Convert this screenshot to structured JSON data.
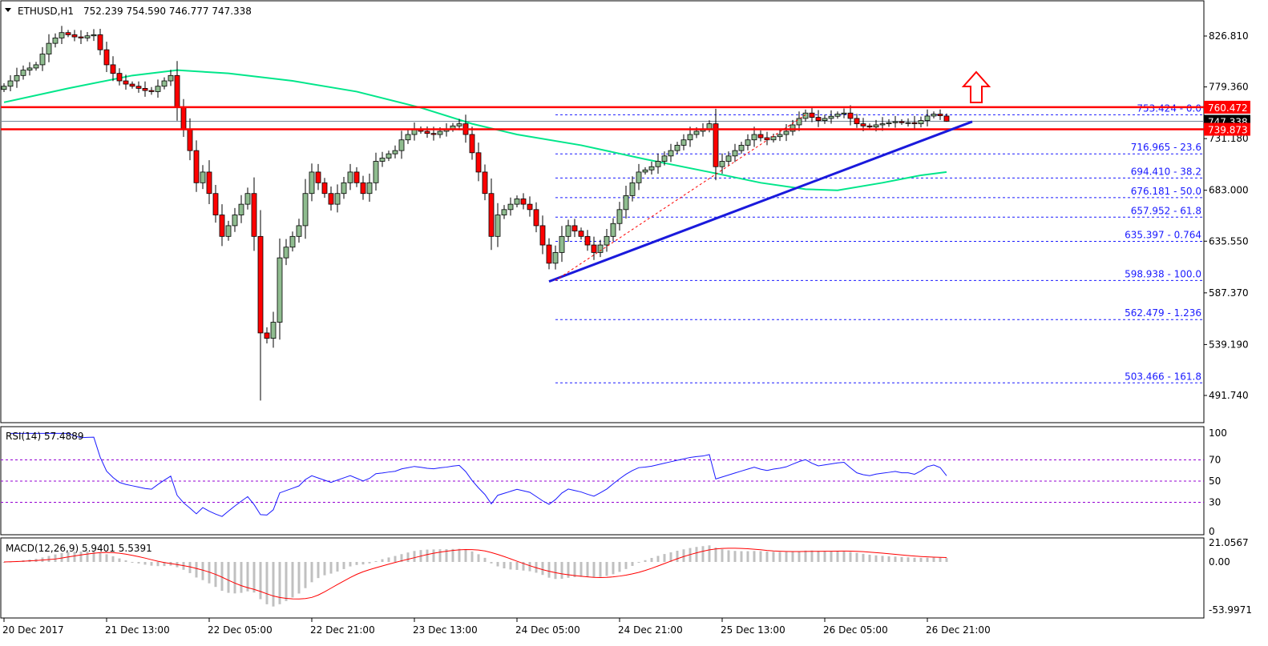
{
  "header": {
    "symbol": "ETHUSD,H1",
    "ohlc": "752.239 754.590 746.777 747.338"
  },
  "colors": {
    "bull": "#8fbc8f",
    "bear": "#ff0000",
    "ma": "#00e68a",
    "trendline": "#1a1adc",
    "resistance": "#ff0000",
    "fib": "#1a1aff",
    "rsi": "#1a1aff",
    "rsi_levels": "#9400d3",
    "macd_hist": "#c0c0c0",
    "macd_signal": "#ff0000"
  },
  "chart_data": [
    {
      "type": "candlestick",
      "title": "ETHUSD,H1",
      "timeframe": "H1",
      "start": "20 Dec 2017 21:00",
      "closes": [
        780,
        785,
        790,
        795,
        797,
        800,
        810,
        820,
        825,
        830,
        828,
        826,
        825,
        827,
        828,
        814,
        800,
        792,
        785,
        782,
        780,
        778,
        776,
        775,
        780,
        785,
        790,
        760,
        740,
        720,
        690,
        700,
        680,
        660,
        640,
        650,
        660,
        670,
        680,
        640,
        550,
        545,
        560,
        620,
        630,
        640,
        650,
        680,
        700,
        690,
        680,
        670,
        680,
        690,
        700,
        690,
        680,
        690,
        710,
        713,
        717,
        720,
        730,
        735,
        740,
        738,
        736,
        735,
        738,
        740,
        743,
        745,
        735,
        718,
        700,
        680,
        640,
        660,
        665,
        670,
        675,
        670,
        665,
        650,
        632,
        615,
        625,
        640,
        650,
        645,
        640,
        632,
        625,
        632,
        640,
        652,
        665,
        678,
        690,
        700,
        702,
        705,
        710,
        715,
        720,
        725,
        730,
        735,
        738,
        740,
        745,
        705,
        710,
        715,
        720,
        725,
        730,
        735,
        732,
        730,
        733,
        735,
        738,
        744,
        750,
        755,
        751,
        748,
        750,
        752,
        754,
        755,
        750,
        745,
        743,
        742,
        744,
        745,
        746,
        747,
        746,
        746,
        745,
        748,
        752.239,
        754,
        752.5,
        747.338
      ],
      "notable_low": {
        "index": 40,
        "low": 487
      },
      "last_bar": {
        "open": 752.239,
        "high": 754.59,
        "low": 746.777,
        "close": 747.338
      },
      "moving_average": [
        [
          0,
          765
        ],
        [
          10,
          778
        ],
        [
          20,
          790
        ],
        [
          27,
          795
        ],
        [
          35,
          792
        ],
        [
          45,
          785
        ],
        [
          55,
          775
        ],
        [
          65,
          760
        ],
        [
          73,
          745
        ],
        [
          80,
          735
        ],
        [
          90,
          725
        ],
        [
          100,
          712
        ],
        [
          110,
          700
        ],
        [
          118,
          690
        ],
        [
          125,
          684
        ],
        [
          130,
          683
        ],
        [
          137,
          690
        ],
        [
          143,
          697
        ],
        [
          147,
          700
        ]
      ],
      "y_ticks": [
        "826.810",
        "779.360",
        "731.180",
        "683.000",
        "635.550",
        "587.370",
        "539.190",
        "491.740"
      ],
      "ylim": [
        475,
        850
      ],
      "x_ticks": [
        "20 Dec 2017",
        "21 Dec 13:00",
        "22 Dec 05:00",
        "22 Dec 21:00",
        "23 Dec 13:00",
        "24 Dec 05:00",
        "24 Dec 21:00",
        "25 Dec 13:00",
        "26 Dec 05:00",
        "26 Dec 21:00"
      ],
      "resistance_levels": [
        {
          "value": 760.472,
          "label": "760.472"
        },
        {
          "value": 739.873,
          "label": "739.873"
        }
      ],
      "current_price": {
        "value": 747.338,
        "label": "747.338"
      },
      "fibonacci": [
        {
          "value": 753.424,
          "label": "753.424 - 0.0"
        },
        {
          "value": 716.965,
          "label": "716.965 - 23.6"
        },
        {
          "value": 694.41,
          "label": "694.410 - 38.2"
        },
        {
          "value": 676.181,
          "label": "676.181 - 50.0"
        },
        {
          "value": 657.952,
          "label": "657.952 - 61.8"
        },
        {
          "value": 635.397,
          "label": "635.397 - 0.764"
        },
        {
          "value": 598.938,
          "label": "598.938 - 100.0"
        },
        {
          "value": 562.479,
          "label": "562.479 - 1.236"
        },
        {
          "value": 503.466,
          "label": "503.466 - 161.8"
        }
      ],
      "trendline": {
        "from": [
          85,
          598
        ],
        "to": [
          151,
          747
        ]
      },
      "fib_anchor": {
        "from": [
          86,
          598.938
        ],
        "to": [
          125,
          753.424
        ]
      },
      "annotation": "up-arrow"
    },
    {
      "type": "line",
      "title": "RSI(14) 57.4889",
      "indicator": "RSI",
      "period": 14,
      "levels": [
        70,
        50,
        30
      ],
      "y_ticks": [
        "100",
        "70",
        "50",
        "30",
        "0"
      ],
      "ylim": [
        0,
        100
      ]
    },
    {
      "type": "bar",
      "title": "MACD(12,26,9) 5.9401 5.5391",
      "indicator": "MACD",
      "params": [
        12,
        26,
        9
      ],
      "y_ticks": [
        "21.0567",
        "0.00",
        "-53.9971"
      ],
      "ylim": [
        -53.9971,
        21.0567
      ]
    }
  ]
}
